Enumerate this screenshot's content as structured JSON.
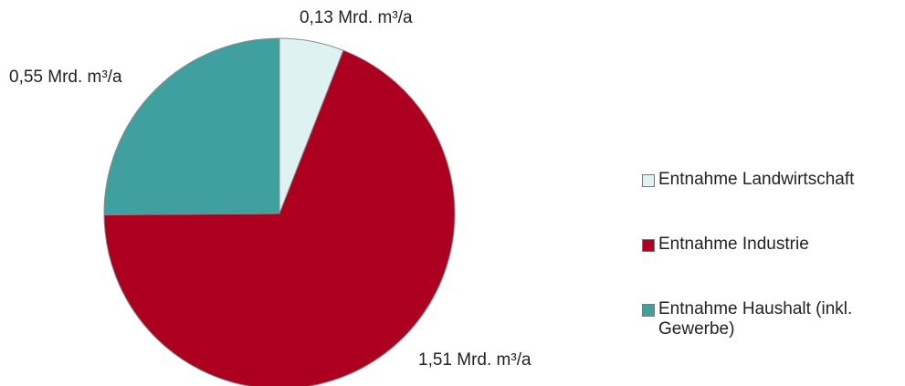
{
  "chart_data": {
    "type": "pie",
    "categories": [
      "Entnahme Landwirtschaft",
      "Entnahme Industrie",
      "Entnahme Haushalt (inkl. Gewerbe)"
    ],
    "values": [
      0.13,
      1.51,
      0.55
    ],
    "value_labels": [
      "0,13 Mrd. m³/a",
      "1,51 Mrd. m³/a",
      "0,55 Mrd. m³/a"
    ],
    "colors": [
      "#dff2f2",
      "#ad0021",
      "#40a0a0"
    ],
    "legend": "right"
  }
}
